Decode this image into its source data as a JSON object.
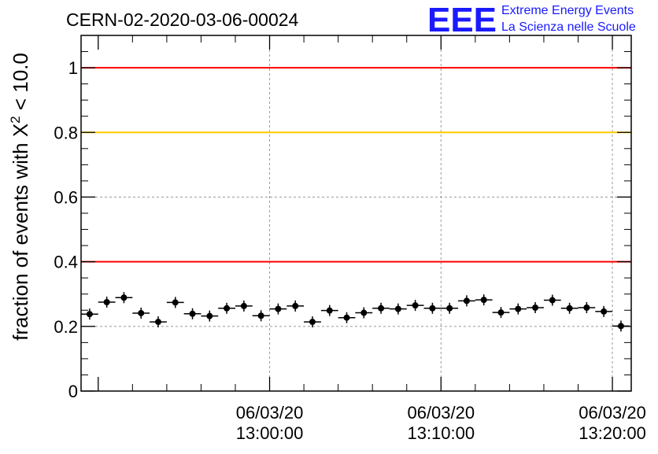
{
  "header": {
    "run_title": "CERN-02-2020-03-06-00024",
    "logo_text": "EEE",
    "logo_line1": "Extreme Energy Events",
    "logo_line2": "La Scienza nelle Scuole"
  },
  "colors": {
    "logo": "#1a1aff",
    "red_line": "#ff0000",
    "yellow_line": "#ffcc00",
    "markers": "#000000",
    "grid": "#999999"
  },
  "chart_data": {
    "type": "scatter",
    "title": "CERN-02-2020-03-06-00024",
    "ylabel": "fraction of events with Χ² < 10.0",
    "ylabel_parts": {
      "pre": "fraction of events with Χ",
      "sup": "2",
      "post": " < 10.0"
    },
    "xlabel": "",
    "ylim": [
      0,
      1.1
    ],
    "xlim_minutes": [
      -11,
      21.1
    ],
    "x_ticks": [
      {
        "minute": 0,
        "date": "06/03/20",
        "time": "13:00:00"
      },
      {
        "minute": 10,
        "date": "06/03/20",
        "time": "13:10:00"
      },
      {
        "minute": 20,
        "date": "06/03/20",
        "time": "13:20:00"
      }
    ],
    "y_ticks": [
      {
        "value": 0,
        "label": "0"
      },
      {
        "value": 0.2,
        "label": "0.2"
      },
      {
        "value": 0.4,
        "label": "0.4"
      },
      {
        "value": 0.6,
        "label": "0.6"
      },
      {
        "value": 0.8,
        "label": "0.8"
      },
      {
        "value": 1.0,
        "label": "1"
      }
    ],
    "reference_lines": [
      {
        "y": 1.0,
        "color": "#ff0000"
      },
      {
        "y": 0.8,
        "color": "#ffcc00"
      },
      {
        "y": 0.4,
        "color": "#ff0000"
      }
    ],
    "grid": true,
    "points": [
      {
        "x": "12:49:30",
        "y": 0.238
      },
      {
        "x": "12:50:30",
        "y": 0.275
      },
      {
        "x": "12:51:30",
        "y": 0.289
      },
      {
        "x": "12:52:30",
        "y": 0.241
      },
      {
        "x": "12:53:30",
        "y": 0.214
      },
      {
        "x": "12:54:30",
        "y": 0.274
      },
      {
        "x": "12:55:30",
        "y": 0.239
      },
      {
        "x": "12:56:30",
        "y": 0.232
      },
      {
        "x": "12:57:30",
        "y": 0.256
      },
      {
        "x": "12:58:30",
        "y": 0.263
      },
      {
        "x": "12:59:30",
        "y": 0.233
      },
      {
        "x": "13:00:30",
        "y": 0.254
      },
      {
        "x": "13:01:30",
        "y": 0.263
      },
      {
        "x": "13:02:30",
        "y": 0.214
      },
      {
        "x": "13:03:30",
        "y": 0.249
      },
      {
        "x": "13:04:30",
        "y": 0.227
      },
      {
        "x": "13:05:30",
        "y": 0.242
      },
      {
        "x": "13:06:30",
        "y": 0.256
      },
      {
        "x": "13:07:30",
        "y": 0.254
      },
      {
        "x": "13:08:30",
        "y": 0.265
      },
      {
        "x": "13:09:30",
        "y": 0.256
      },
      {
        "x": "13:10:30",
        "y": 0.256
      },
      {
        "x": "13:11:30",
        "y": 0.279
      },
      {
        "x": "13:12:30",
        "y": 0.282
      },
      {
        "x": "13:13:30",
        "y": 0.243
      },
      {
        "x": "13:14:30",
        "y": 0.254
      },
      {
        "x": "13:15:30",
        "y": 0.258
      },
      {
        "x": "13:16:30",
        "y": 0.281
      },
      {
        "x": "13:17:30",
        "y": 0.256
      },
      {
        "x": "13:18:30",
        "y": 0.258
      },
      {
        "x": "13:19:30",
        "y": 0.246
      },
      {
        "x": "13:20:30",
        "y": 0.201
      }
    ]
  }
}
